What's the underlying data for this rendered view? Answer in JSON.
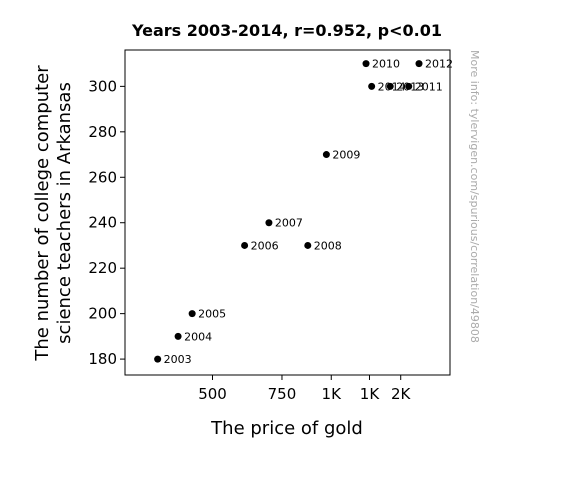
{
  "chart_data": {
    "type": "scatter",
    "title": "Years 2003-2014, r=0.952, p<0.01",
    "xlabel": "The price of gold",
    "ylabel_lines": [
      "The number of college computer",
      "science teachers in Arkansas"
    ],
    "watermark": "More info: tylervigen.com/spurious/correlation/49808",
    "x_scale": "log",
    "xlim": [
      300,
      2000
    ],
    "ylim": [
      173,
      316
    ],
    "x_ticks": [
      {
        "value": 500,
        "label": "500"
      },
      {
        "value": 750,
        "label": "750"
      },
      {
        "value": 1000,
        "label": "1K"
      },
      {
        "value": 1250,
        "label": "1K"
      },
      {
        "value": 1500,
        "label": "2K"
      }
    ],
    "y_ticks": [
      {
        "value": 180,
        "label": "180"
      },
      {
        "value": 200,
        "label": "200"
      },
      {
        "value": 220,
        "label": "220"
      },
      {
        "value": 240,
        "label": "240"
      },
      {
        "value": 260,
        "label": "260"
      },
      {
        "value": 280,
        "label": "280"
      },
      {
        "value": 300,
        "label": "300"
      }
    ],
    "points": [
      {
        "label": "2003",
        "x": 363,
        "y": 180
      },
      {
        "label": "2004",
        "x": 409,
        "y": 190
      },
      {
        "label": "2005",
        "x": 444,
        "y": 200
      },
      {
        "label": "2006",
        "x": 603,
        "y": 230
      },
      {
        "label": "2007",
        "x": 695,
        "y": 240
      },
      {
        "label": "2008",
        "x": 872,
        "y": 230
      },
      {
        "label": "2009",
        "x": 972,
        "y": 270
      },
      {
        "label": "2010",
        "x": 1225,
        "y": 310
      },
      {
        "label": "2011",
        "x": 1572,
        "y": 300
      },
      {
        "label": "2012",
        "x": 1669,
        "y": 310
      },
      {
        "label": "2013",
        "x": 1411,
        "y": 300
      },
      {
        "label": "2014",
        "x": 1266,
        "y": 300
      }
    ],
    "marker_color": "#000000"
  }
}
